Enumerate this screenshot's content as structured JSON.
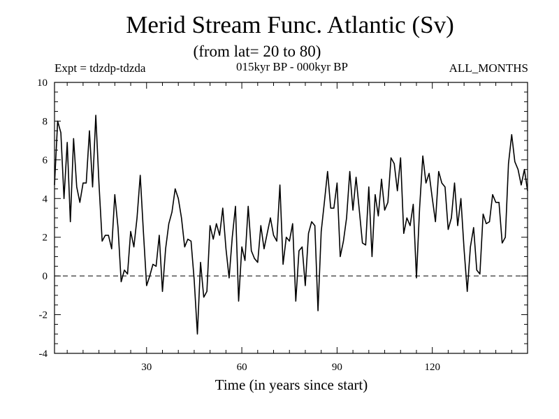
{
  "header": {
    "title": "Merid Stream Func. Atlantic (Sv)",
    "subtitle": "(from lat= 20 to 80)",
    "expt": "Expt = tdzdp-tdzda",
    "period": "015kyr BP - 000kyr BP",
    "months": "ALL_MONTHS"
  },
  "chart_data": {
    "type": "line",
    "title": "Merid Stream Func. Atlantic (Sv)",
    "subtitle": "(from lat= 20 to 80)",
    "xlabel": "Time (in years since start)",
    "ylabel": "",
    "xlim": [
      1,
      150
    ],
    "ylim": [
      -4,
      10
    ],
    "xticks": [
      30,
      60,
      90,
      120
    ],
    "yticks": [
      -4,
      -2,
      0,
      2,
      4,
      6,
      8,
      10
    ],
    "reference_line": {
      "y": 0,
      "style": "dashed"
    },
    "grid": false,
    "legend": "none",
    "series": [
      {
        "x": [
          1,
          2,
          3,
          4,
          5,
          6,
          7,
          8,
          9,
          10,
          11,
          12,
          13,
          14,
          15,
          16,
          17,
          18,
          19,
          20,
          21,
          22,
          23,
          24,
          25,
          26,
          27,
          28,
          29,
          30,
          31,
          32,
          33,
          34,
          35,
          36,
          37,
          38,
          39,
          40,
          41,
          42,
          43,
          44,
          45,
          46,
          47,
          48,
          49,
          50,
          51,
          52,
          53,
          54,
          55,
          56,
          57,
          58,
          59,
          60,
          61,
          62,
          63,
          64,
          65,
          66,
          67,
          68,
          69,
          70,
          71,
          72,
          73,
          74,
          75,
          76,
          77,
          78,
          79,
          80,
          81,
          82,
          83,
          84,
          85,
          86,
          87,
          88,
          89,
          90,
          91,
          92,
          93,
          94,
          95,
          96,
          97,
          98,
          99,
          100,
          101,
          102,
          103,
          104,
          105,
          106,
          107,
          108,
          109,
          110,
          111,
          112,
          113,
          114,
          115,
          116,
          117,
          118,
          119,
          120,
          121,
          122,
          123,
          124,
          125,
          126,
          127,
          128,
          129,
          130,
          131,
          132,
          133,
          134,
          135,
          136,
          137,
          138,
          139,
          140,
          141,
          142,
          143,
          144,
          145,
          146,
          147,
          148,
          149,
          150
        ],
        "y": [
          4.7,
          8.0,
          7.4,
          4.0,
          6.9,
          2.8,
          7.1,
          4.6,
          3.8,
          4.8,
          4.8,
          7.5,
          4.6,
          8.3,
          4.8,
          1.8,
          2.1,
          2.1,
          1.4,
          4.2,
          2.5,
          -0.3,
          0.3,
          0.1,
          2.3,
          1.5,
          3.0,
          5.2,
          2.3,
          -0.5,
          0.0,
          0.6,
          0.5,
          2.1,
          -0.8,
          1.4,
          2.7,
          3.3,
          4.5,
          4.0,
          3.0,
          1.5,
          1.9,
          1.8,
          -0.2,
          -3.0,
          0.7,
          -1.1,
          -0.8,
          2.6,
          1.9,
          2.7,
          2.1,
          3.5,
          1.4,
          -0.1,
          2.0,
          3.6,
          -1.3,
          1.5,
          0.8,
          3.6,
          1.3,
          0.9,
          0.7,
          2.6,
          1.4,
          2.2,
          3.0,
          2.1,
          1.8,
          4.7,
          0.6,
          2.0,
          1.8,
          2.7,
          -1.3,
          1.3,
          1.5,
          -0.5,
          2.2,
          2.8,
          2.6,
          -1.8,
          2.3,
          3.8,
          5.4,
          3.5,
          3.5,
          4.8,
          1.0,
          1.8,
          3.0,
          5.4,
          3.4,
          5.1,
          3.4,
          1.7,
          1.6,
          4.6,
          1.0,
          4.2,
          3.1,
          5.0,
          3.4,
          3.8,
          6.1,
          5.8,
          4.4,
          6.1,
          2.2,
          3.0,
          2.6,
          3.7,
          -0.1,
          3.5,
          6.2,
          4.8,
          5.3,
          4.0,
          2.8,
          5.4,
          4.8,
          4.6,
          2.4,
          3.0,
          4.8,
          2.6,
          4.0,
          1.4,
          -0.8,
          1.5,
          2.5,
          0.3,
          0.1,
          3.2,
          2.7,
          2.8,
          4.2,
          3.8,
          3.8,
          1.7,
          2.0,
          5.8,
          7.3,
          5.9,
          5.5,
          4.7,
          5.5,
          4.4
        ]
      }
    ]
  }
}
